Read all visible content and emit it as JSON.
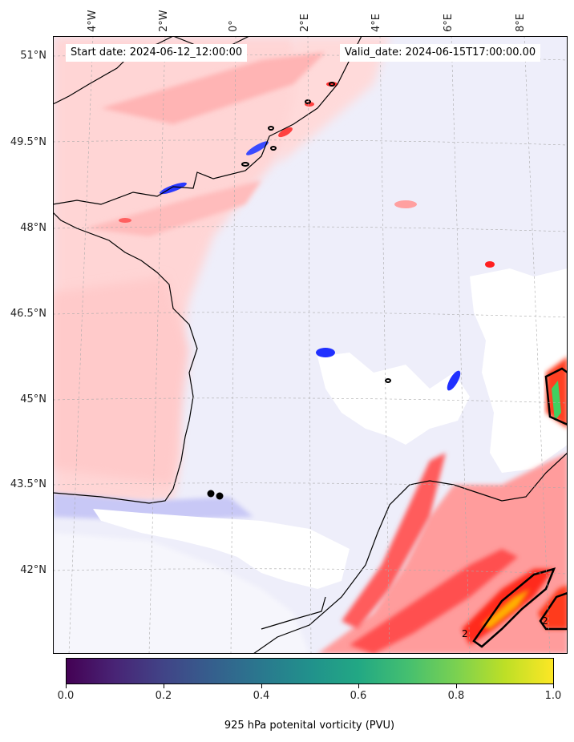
{
  "map": {
    "start_date": "Start date: 2024-06-12_12:00:00",
    "valid_date": "Valid_date: 2024-06-15T17:00:00.00",
    "lon_labels": [
      "4°W",
      "2°W",
      "0°",
      "2°E",
      "4°E",
      "6°E",
      "8°E"
    ],
    "lat_labels": [
      "51°N",
      "49.5°N",
      "48°N",
      "46.5°N",
      "45°N",
      "43.5°N",
      "42°N"
    ],
    "contour_labels": [
      "2",
      "2"
    ]
  },
  "colorbar": {
    "ticks": [
      "0.0",
      "0.2",
      "0.4",
      "0.6",
      "0.8",
      "1.0"
    ],
    "title": "925 hPa potenital vorticity (PVU)",
    "colormap": "viridis",
    "range": [
      0.0,
      1.0
    ]
  },
  "colors": {
    "background": "#ffffff",
    "light_blue_field": "#eeeefa",
    "light_red_field": "#ffd5d5",
    "medium_red": "#ff9a9a",
    "strong_red": "#ff3a2a",
    "negative_blue": "#1a2aff",
    "coastline": "#000000"
  }
}
